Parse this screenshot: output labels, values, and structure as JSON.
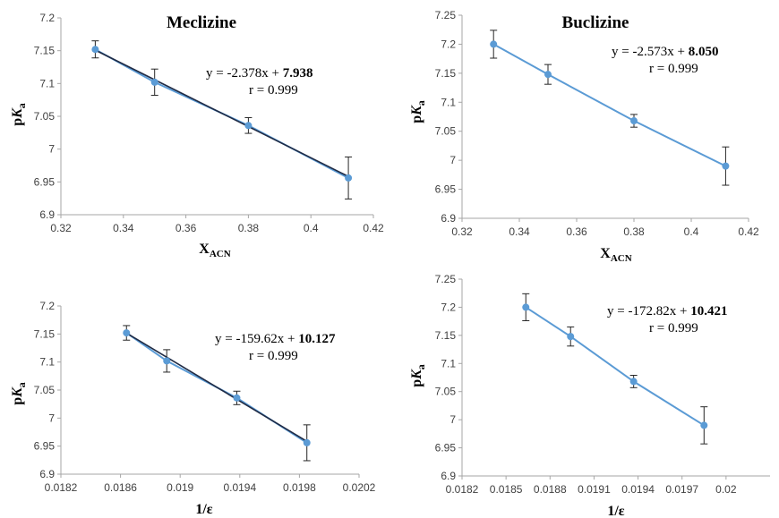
{
  "chart_data": [
    {
      "type": "scatter",
      "title": "Meclizine",
      "xlabel": "X",
      "xlabel_sub": "ACN",
      "ylabel": "pK",
      "ylabel_sub": "a",
      "xlim": [
        0.32,
        0.42
      ],
      "ylim": [
        6.9,
        7.2
      ],
      "x_ticks": [
        0.32,
        0.34,
        0.36,
        0.38,
        0.4,
        0.42
      ],
      "x_tick_labels": [
        "0.32",
        "0.34",
        "0.36",
        "0.38",
        "0.4",
        "0.42"
      ],
      "y_ticks": [
        6.9,
        6.95,
        7,
        7.05,
        7.1,
        7.15,
        7.2
      ],
      "y_tick_labels": [
        "6.9",
        "6.95",
        "7",
        "7.05",
        "7.1",
        "7.15",
        "7.2"
      ],
      "points": [
        {
          "x": 0.331,
          "y": 7.152,
          "err": 0.013
        },
        {
          "x": 0.35,
          "y": 7.102,
          "err": 0.02
        },
        {
          "x": 0.38,
          "y": 7.036,
          "err": 0.012
        },
        {
          "x": 0.412,
          "y": 6.956,
          "err": 0.032
        }
      ],
      "fit": {
        "slope": -2.378,
        "intercept": 7.938
      },
      "equation": {
        "prefix": "y = ",
        "slope": "-2.378",
        "mid": "x + ",
        "intercept": "7.938"
      },
      "r_text": "r = 0.999",
      "has_dark_fit": true,
      "grid": false
    },
    {
      "type": "scatter",
      "title": "Buclizine",
      "xlabel": "X",
      "xlabel_sub": "ACN",
      "ylabel": "pK",
      "ylabel_sub": "a",
      "xlim": [
        0.32,
        0.42
      ],
      "ylim": [
        6.9,
        7.25
      ],
      "x_ticks": [
        0.32,
        0.34,
        0.36,
        0.38,
        0.4,
        0.42
      ],
      "x_tick_labels": [
        "0.32",
        "0.34",
        "0.36",
        "0.38",
        "0.4",
        "0.42"
      ],
      "y_ticks": [
        6.9,
        6.95,
        7,
        7.05,
        7.1,
        7.15,
        7.2,
        7.25
      ],
      "y_tick_labels": [
        "6.9",
        "6.95",
        "7",
        "7.05",
        "7.1",
        "7.15",
        "7.2",
        "7.25"
      ],
      "points": [
        {
          "x": 0.331,
          "y": 7.2,
          "err": 0.024
        },
        {
          "x": 0.35,
          "y": 7.148,
          "err": 0.017
        },
        {
          "x": 0.38,
          "y": 7.068,
          "err": 0.011
        },
        {
          "x": 0.412,
          "y": 6.99,
          "err": 0.033
        }
      ],
      "fit": {
        "slope": -2.573,
        "intercept": 8.05
      },
      "equation": {
        "prefix": "y = ",
        "slope": "-2.573",
        "mid": "x + ",
        "intercept": "8.050"
      },
      "r_text": "r = 0.999",
      "has_dark_fit": false,
      "grid": false
    },
    {
      "type": "scatter",
      "title": "",
      "xlabel": "1/ε",
      "xlabel_sub": "",
      "ylabel": "pK",
      "ylabel_sub": "a",
      "xlim": [
        0.0182,
        0.0202
      ],
      "ylim": [
        6.9,
        7.2
      ],
      "x_ticks": [
        0.0182,
        0.0186,
        0.019,
        0.0194,
        0.0198,
        0.0202
      ],
      "x_tick_labels": [
        "0.0182",
        "0.0186",
        "0.019",
        "0.0194",
        "0.0198",
        "0.0202"
      ],
      "y_ticks": [
        6.9,
        6.95,
        7,
        7.05,
        7.1,
        7.15,
        7.2
      ],
      "y_tick_labels": [
        "6.9",
        "6.95",
        "7",
        "7.05",
        "7.1",
        "7.15",
        "7.2"
      ],
      "points": [
        {
          "x": 0.01864,
          "y": 7.152,
          "err": 0.013
        },
        {
          "x": 0.01891,
          "y": 7.102,
          "err": 0.02
        },
        {
          "x": 0.01938,
          "y": 7.036,
          "err": 0.012
        },
        {
          "x": 0.01985,
          "y": 6.956,
          "err": 0.032
        }
      ],
      "fit": {
        "slope": -159.62,
        "intercept": 10.127
      },
      "equation": {
        "prefix": "y = ",
        "slope": "-159.62",
        "mid": "x + ",
        "intercept": "10.127"
      },
      "r_text": "r = 0.999",
      "has_dark_fit": true,
      "grid": false
    },
    {
      "type": "scatter",
      "title": "",
      "xlabel": "1/ε",
      "xlabel_sub": "",
      "ylabel": "pK",
      "ylabel_sub": "a",
      "xlim": [
        0.0182,
        0.0203
      ],
      "ylim": [
        6.9,
        7.25
      ],
      "x_ticks": [
        0.0182,
        0.0185,
        0.0188,
        0.0191,
        0.0194,
        0.0197,
        0.02
      ],
      "x_tick_labels": [
        "0.0182",
        "0.0185",
        "0.0188",
        "0.0191",
        "0.0194",
        "0.0197",
        "0.02"
      ],
      "y_ticks": [
        6.9,
        6.95,
        7,
        7.05,
        7.1,
        7.15,
        7.2,
        7.25
      ],
      "y_tick_labels": [
        "6.9",
        "6.95",
        "7",
        "7.05",
        "7.1",
        "7.15",
        "7.2",
        "7.25"
      ],
      "points": [
        {
          "x": 0.018635,
          "y": 7.2,
          "err": 0.024
        },
        {
          "x": 0.01894,
          "y": 7.148,
          "err": 0.017
        },
        {
          "x": 0.01937,
          "y": 7.068,
          "err": 0.011
        },
        {
          "x": 0.01985,
          "y": 6.99,
          "err": 0.033
        }
      ],
      "fit": {
        "slope": -172.82,
        "intercept": 10.421
      },
      "equation": {
        "prefix": "y = ",
        "slope": "-172.82",
        "mid": "x + ",
        "intercept": "10.421"
      },
      "r_text": "r = 0.999",
      "has_dark_fit": false,
      "grid": false
    }
  ],
  "colors": {
    "series": "#5b9bd5",
    "dark_fit": "#1f2a44",
    "axis": "#a6a6a6",
    "error": "#262626"
  }
}
